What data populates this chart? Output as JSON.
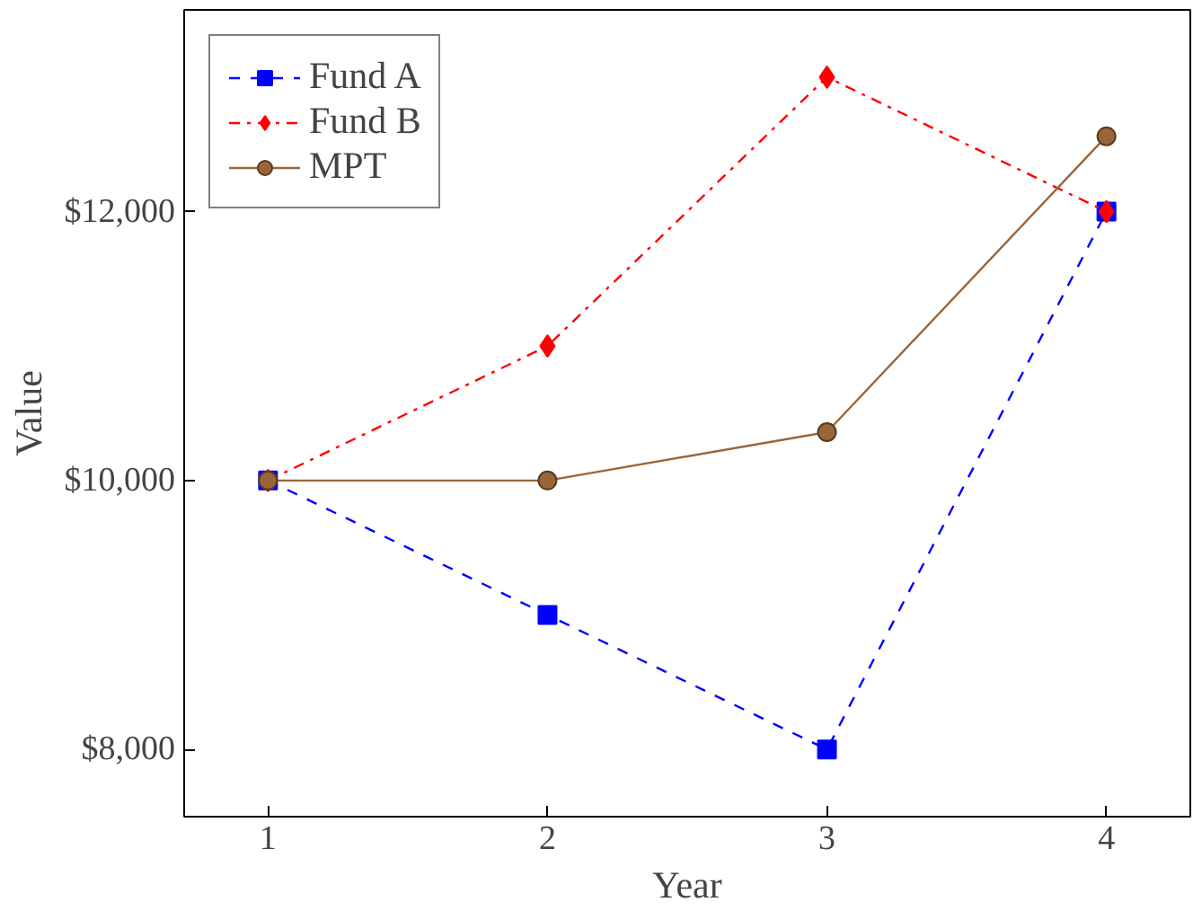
{
  "chart_data": {
    "type": "line",
    "xlabel": "Year",
    "ylabel": "Value",
    "x": [
      1,
      2,
      3,
      4
    ],
    "series": [
      {
        "name": "Fund A",
        "color": "#0000ff",
        "values": [
          10000,
          9000,
          8000,
          12000
        ],
        "marker": "square",
        "line_style": "dashed"
      },
      {
        "name": "Fund B",
        "color": "#ff0000",
        "values": [
          10000,
          11000,
          13000,
          12000
        ],
        "marker": "diamond",
        "line_style": "dashdot"
      },
      {
        "name": "MPT",
        "color": "#99663a",
        "values": [
          10000,
          10000,
          10360,
          12560
        ],
        "marker": "circle",
        "line_style": "solid"
      }
    ],
    "xlim": [
      0.7,
      4.3
    ],
    "ylim": [
      7500,
      13500
    ],
    "xticks": [
      1,
      2,
      3,
      4
    ],
    "yticks": [
      {
        "value": 8000,
        "label": "$8,000"
      },
      {
        "value": 10000,
        "label": "$10,000"
      },
      {
        "value": 12000,
        "label": "$12,000"
      }
    ],
    "grid": false,
    "legend": "top left"
  }
}
